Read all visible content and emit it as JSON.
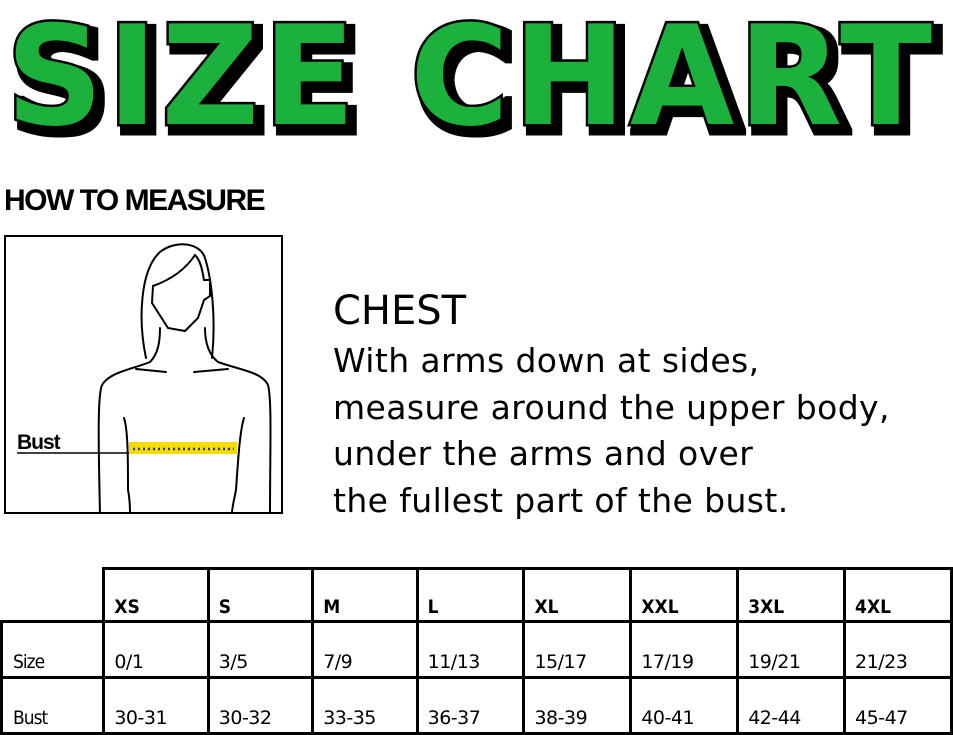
{
  "title": "SIZE CHART",
  "colors": {
    "title_fill": "#1db03c",
    "tape": "#f3dc00"
  },
  "how_to_measure": "HOW TO MEASURE",
  "figure": {
    "label": "Bust"
  },
  "chest": {
    "heading": "CHEST",
    "lines": [
      "With arms down at sides,",
      "measure around the upper body,",
      "under the arms and over",
      "the fullest part of the bust."
    ]
  },
  "table": {
    "headers": [
      "XS",
      "S",
      "M",
      "L",
      "XL",
      "XXL",
      "3XL",
      "4XL"
    ],
    "rows": [
      {
        "label": "Size",
        "values": [
          "0/1",
          "3/5",
          "7/9",
          "11/13",
          "15/17",
          "17/19",
          "19/21",
          "21/23"
        ]
      },
      {
        "label": "Bust",
        "values": [
          "30-31",
          "30-32",
          "33-35",
          "36-37",
          "38-39",
          "40-41",
          "42-44",
          "45-47"
        ]
      }
    ]
  }
}
